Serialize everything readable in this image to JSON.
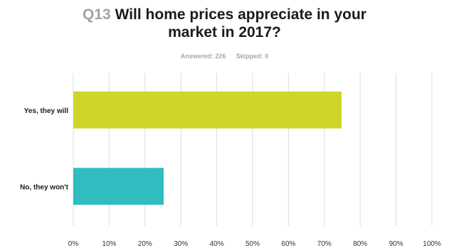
{
  "header": {
    "question_number": "Q13",
    "title_line1": "Will home prices appreciate in your",
    "title_line2": "market in 2017?",
    "answered": "Answered: 226",
    "skipped": "Skipped: 0"
  },
  "chart_data": {
    "type": "bar",
    "orientation": "horizontal",
    "categories": [
      "Yes, they will",
      "No, they won't"
    ],
    "values": [
      74.8,
      25.2
    ],
    "colors": [
      "#cfd62a",
      "#2fbdbf"
    ],
    "xlim": [
      0,
      100
    ],
    "xticks": [
      "0%",
      "10%",
      "20%",
      "30%",
      "40%",
      "50%",
      "60%",
      "70%",
      "80%",
      "90%",
      "100%"
    ],
    "grid": true,
    "legend": "none"
  }
}
